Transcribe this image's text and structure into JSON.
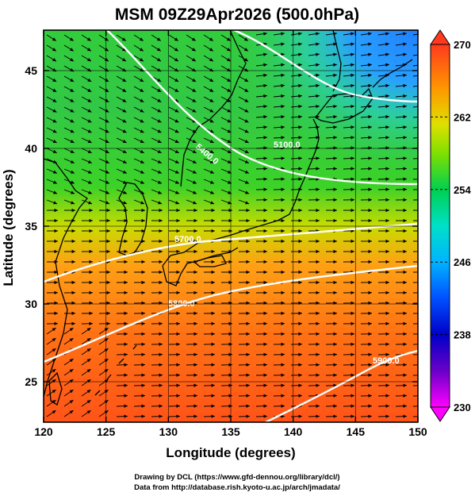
{
  "chart_data": {
    "type": "heatmap",
    "title": "MSM 09Z29Apr2026 (500.0hPa)",
    "xlabel": "Longitude (degrees)",
    "ylabel": "Latitude  (degrees)",
    "xlim": [
      120,
      150
    ],
    "ylim": [
      22.4,
      47.6
    ],
    "x_ticks": [
      "120",
      "125",
      "130",
      "135",
      "140",
      "145",
      "150"
    ],
    "y_ticks": [
      "25",
      "30",
      "35",
      "40",
      "45"
    ],
    "colorbar": {
      "min": 230,
      "max": 270,
      "ticks": [
        "270",
        "262",
        "254",
        "246",
        "238",
        "230"
      ]
    },
    "contours": [
      {
        "label": "5100.0",
        "lat_at_lon": [
          [
            137.5,
            45.5
          ],
          [
            143.0,
            43.2
          ],
          [
            150.0,
            43.0
          ]
        ]
      },
      {
        "label": "5400.0",
        "lat_at_lon": [
          [
            125.0,
            48.0
          ],
          [
            132.0,
            42.5
          ],
          [
            136.0,
            40.6
          ],
          [
            142.0,
            39.6
          ],
          [
            150.0,
            40.0
          ]
        ]
      },
      {
        "label": "5700.0",
        "lat_at_lon": [
          [
            120.0,
            31.8
          ],
          [
            128.0,
            34.3
          ],
          [
            135.0,
            35.0
          ],
          [
            142.0,
            36.0
          ],
          [
            150.0,
            36.3
          ]
        ]
      },
      {
        "label": "5800.0",
        "lat_at_lon": [
          [
            120.0,
            26.0
          ],
          [
            127.0,
            28.8
          ],
          [
            135.0,
            30.8
          ],
          [
            142.0,
            32.2
          ],
          [
            150.0,
            33.2
          ]
        ]
      },
      {
        "label": "5900.0",
        "lat_at_lon": [
          [
            138.0,
            22.5
          ],
          [
            143.5,
            25.5
          ],
          [
            150.0,
            27.3
          ]
        ]
      }
    ],
    "grid": true,
    "overlays": [
      "temperature shading",
      "geopotential height contours",
      "wind streamlines",
      "coastlines"
    ]
  },
  "footer": {
    "line1": "Drawing by DCL (https://www.gfd-dennou.org/library/dcl/)",
    "line2": "Data from http://database.rish.kyoto-u.ac.jp/arch/jmadata/"
  }
}
